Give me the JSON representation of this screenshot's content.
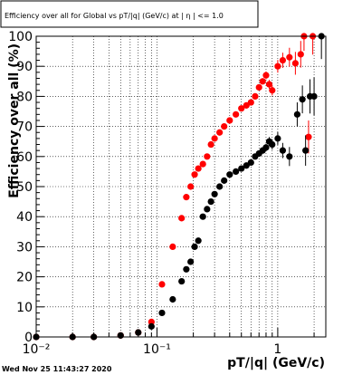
{
  "chart_data": {
    "type": "scatter",
    "title": "Efficiency over all for Global vs pT/|q| (GeV/c) at | η | <= 1.0",
    "xlabel": "pT/|q| (GeV/c)",
    "ylabel": "Efficiency over all (%)",
    "xscale": "log",
    "xlim": [
      0.01,
      2.5
    ],
    "ylim": [
      0,
      100
    ],
    "grid": true,
    "legend": "none",
    "x_ticks": [
      {
        "value": 0.01,
        "label": "10⁻²"
      },
      {
        "value": 0.1,
        "label": "10⁻¹"
      },
      {
        "value": 1,
        "label": "1"
      }
    ],
    "y_ticks": [
      0,
      10,
      20,
      30,
      40,
      50,
      60,
      70,
      80,
      90,
      100
    ],
    "timestamp": "Wed Nov 25 11:43:27 2020",
    "series": [
      {
        "color": "#ff0000",
        "points": [
          {
            "x": 0.01,
            "y": 0
          },
          {
            "x": 0.02,
            "y": 0
          },
          {
            "x": 0.03,
            "y": 0
          },
          {
            "x": 0.05,
            "y": 0.5
          },
          {
            "x": 0.07,
            "y": 1.5
          },
          {
            "x": 0.09,
            "y": 5
          },
          {
            "x": 0.11,
            "y": 17.5
          },
          {
            "x": 0.135,
            "y": 30
          },
          {
            "x": 0.16,
            "y": 39.5
          },
          {
            "x": 0.175,
            "y": 46.5
          },
          {
            "x": 0.19,
            "y": 50
          },
          {
            "x": 0.205,
            "y": 54
          },
          {
            "x": 0.22,
            "y": 56
          },
          {
            "x": 0.24,
            "y": 57.5
          },
          {
            "x": 0.26,
            "y": 60
          },
          {
            "x": 0.28,
            "y": 64
          },
          {
            "x": 0.3,
            "y": 66
          },
          {
            "x": 0.33,
            "y": 68
          },
          {
            "x": 0.36,
            "y": 70
          },
          {
            "x": 0.4,
            "y": 72
          },
          {
            "x": 0.45,
            "y": 74
          },
          {
            "x": 0.5,
            "y": 76
          },
          {
            "x": 0.55,
            "y": 77
          },
          {
            "x": 0.6,
            "y": 78
          },
          {
            "x": 0.65,
            "y": 80
          },
          {
            "x": 0.7,
            "y": 83
          },
          {
            "x": 0.75,
            "y": 85
          },
          {
            "x": 0.8,
            "y": 87
          },
          {
            "x": 0.85,
            "y": 84
          },
          {
            "x": 0.9,
            "y": 82
          },
          {
            "x": 1.0,
            "y": 90
          },
          {
            "x": 1.1,
            "y": 92
          },
          {
            "x": 1.25,
            "y": 93
          },
          {
            "x": 1.4,
            "y": 91
          },
          {
            "x": 1.55,
            "y": 94
          },
          {
            "x": 1.65,
            "y": 100
          },
          {
            "x": 1.8,
            "y": 66.5
          },
          {
            "x": 1.95,
            "y": 100
          }
        ]
      },
      {
        "color": "#000000",
        "points": [
          {
            "x": 0.01,
            "y": 0
          },
          {
            "x": 0.02,
            "y": 0
          },
          {
            "x": 0.03,
            "y": 0
          },
          {
            "x": 0.05,
            "y": 0.5
          },
          {
            "x": 0.07,
            "y": 1.5
          },
          {
            "x": 0.09,
            "y": 3.5
          },
          {
            "x": 0.11,
            "y": 8
          },
          {
            "x": 0.135,
            "y": 12.5
          },
          {
            "x": 0.16,
            "y": 18.5
          },
          {
            "x": 0.175,
            "y": 22.5
          },
          {
            "x": 0.19,
            "y": 25
          },
          {
            "x": 0.205,
            "y": 30
          },
          {
            "x": 0.22,
            "y": 32
          },
          {
            "x": 0.24,
            "y": 40
          },
          {
            "x": 0.26,
            "y": 42.5
          },
          {
            "x": 0.28,
            "y": 45
          },
          {
            "x": 0.3,
            "y": 47.5
          },
          {
            "x": 0.33,
            "y": 50
          },
          {
            "x": 0.36,
            "y": 52
          },
          {
            "x": 0.4,
            "y": 54
          },
          {
            "x": 0.45,
            "y": 55
          },
          {
            "x": 0.5,
            "y": 56
          },
          {
            "x": 0.55,
            "y": 57
          },
          {
            "x": 0.6,
            "y": 58
          },
          {
            "x": 0.65,
            "y": 60
          },
          {
            "x": 0.7,
            "y": 61
          },
          {
            "x": 0.75,
            "y": 62
          },
          {
            "x": 0.8,
            "y": 63
          },
          {
            "x": 0.85,
            "y": 65
          },
          {
            "x": 0.9,
            "y": 64
          },
          {
            "x": 1.0,
            "y": 66
          },
          {
            "x": 1.1,
            "y": 62
          },
          {
            "x": 1.25,
            "y": 60
          },
          {
            "x": 1.45,
            "y": 74
          },
          {
            "x": 1.6,
            "y": 79
          },
          {
            "x": 1.7,
            "y": 62
          },
          {
            "x": 1.85,
            "y": 80
          },
          {
            "x": 2.0,
            "y": 80
          },
          {
            "x": 2.3,
            "y": 100
          }
        ]
      }
    ]
  }
}
